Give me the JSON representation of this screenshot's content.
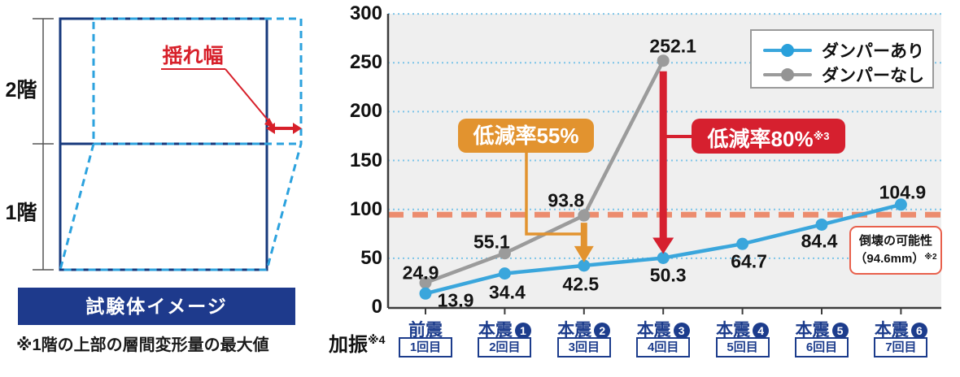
{
  "diagram": {
    "floor2": "2階",
    "floor1": "1階",
    "sway_label": "揺れ幅",
    "banner": "試験体イメージ",
    "note": "※1階の上部の層間変形量の最大値",
    "colors": {
      "frame_navy": "#17397C",
      "deformed_blue": "#2CA2DE",
      "sway_red": "#D7202A"
    }
  },
  "chart": {
    "legend": [
      {
        "label": "ダンパーあり",
        "color": "#3AA6DC"
      },
      {
        "label": "ダンパーなし",
        "color": "#9B9B9B"
      }
    ],
    "x_prefix": {
      "text": "加振",
      "ref": "※4"
    },
    "badges": {
      "orange": {
        "label": "低減率55%",
        "color": "#E2932F"
      },
      "red": {
        "label": "低減率80%",
        "ref": "※3",
        "color": "#D6202F"
      }
    },
    "threshold_note": {
      "line1": "倒壊の可能性",
      "line2": "（94.6mm）",
      "ref": "※2"
    }
  },
  "chart_data": {
    "type": "line",
    "categories": [
      "前震",
      "本震❶",
      "本震❷",
      "本震❸",
      "本震❹",
      "本震❺",
      "本震❻"
    ],
    "x_sub_labels": [
      "1回目",
      "2回目",
      "3回目",
      "4回目",
      "5回目",
      "6回目",
      "7回目"
    ],
    "x_ticks": [
      {
        "main": "前震",
        "num": "",
        "round": "1回目"
      },
      {
        "main": "本震",
        "num": "1",
        "round": "2回目"
      },
      {
        "main": "本震",
        "num": "2",
        "round": "3回目"
      },
      {
        "main": "本震",
        "num": "3",
        "round": "4回目"
      },
      {
        "main": "本震",
        "num": "4",
        "round": "5回目"
      },
      {
        "main": "本震",
        "num": "5",
        "round": "6回目"
      },
      {
        "main": "本震",
        "num": "6",
        "round": "7回目"
      }
    ],
    "series": [
      {
        "name": "ダンパーあり",
        "color": "#3AA6DC",
        "values": [
          13.9,
          34.4,
          42.5,
          50.3,
          64.7,
          84.4,
          104.9
        ]
      },
      {
        "name": "ダンパーなし",
        "color": "#9B9B9B",
        "values": [
          24.9,
          55.1,
          93.8,
          252.1,
          null,
          null,
          null
        ]
      }
    ],
    "title": "",
    "xlabel": "加振※4",
    "ylabel": "",
    "ylim": [
      0,
      300
    ],
    "yticks": [
      0,
      50,
      100,
      150,
      200,
      250,
      300
    ],
    "grid": true,
    "legend_position": "top-right",
    "threshold": {
      "value": 94.6,
      "label": "倒壊の可能性（94.6mm）※2",
      "color": "#EC8C6E"
    },
    "annotations": [
      {
        "text": "低減率55%",
        "category_index": 2,
        "from_value": 93.8,
        "to_value": 42.5,
        "color": "#E2932F"
      },
      {
        "text": "低減率80%※3",
        "category_index": 3,
        "from_value": 252.1,
        "to_value": 50.3,
        "color": "#D6202F"
      }
    ]
  }
}
